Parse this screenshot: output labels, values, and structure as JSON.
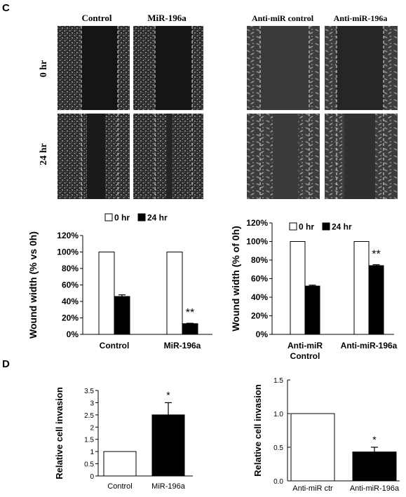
{
  "panels": {
    "c_label": "C",
    "d_label": "D"
  },
  "micro": {
    "left": {
      "col1": "Control",
      "col2": "MiR-196a"
    },
    "right": {
      "col1": "Anti-miR control",
      "col2": "Anti-miR-196a"
    },
    "rows": [
      "0 hr",
      "24 hr"
    ]
  },
  "chart_data": [
    {
      "type": "bar",
      "categories": [
        "Control",
        "MiR-196a"
      ],
      "series": [
        {
          "name": "0 hr",
          "values": [
            100,
            100
          ],
          "errors": [
            0,
            0
          ],
          "color": "#ffffff"
        },
        {
          "name": "24 hr",
          "values": [
            46,
            13
          ],
          "errors": [
            2,
            0.5
          ],
          "color": "#000000"
        }
      ],
      "ylabel": "Wound width (% vs 0h)",
      "ylim": [
        0,
        120
      ],
      "yticks": [
        "0%",
        "20%",
        "40%",
        "60%",
        "80%",
        "100%",
        "120%"
      ],
      "annotations": [
        {
          "category": "MiR-196a",
          "series": "24 hr",
          "text": "**"
        }
      ],
      "legend": "top"
    },
    {
      "type": "bar",
      "categories": [
        "Anti-miR Control",
        "Anti-miR-196a"
      ],
      "category_lines": [
        [
          "Anti-miR",
          "Control"
        ],
        [
          "Anti-miR-196a"
        ]
      ],
      "series": [
        {
          "name": "0 hr",
          "values": [
            100,
            100
          ],
          "errors": [
            0,
            0
          ],
          "color": "#ffffff"
        },
        {
          "name": "24 hr",
          "values": [
            52,
            74
          ],
          "errors": [
            1,
            1
          ],
          "color": "#000000"
        }
      ],
      "ylabel": "Wound width (% of 0h)",
      "ylim": [
        0,
        120
      ],
      "yticks": [
        "0%",
        "20%",
        "40%",
        "60%",
        "80%",
        "100%",
        "120%"
      ],
      "annotations": [
        {
          "category": "Anti-miR-196a",
          "series": "24 hr",
          "text": "**"
        }
      ],
      "legend": "top"
    },
    {
      "type": "bar",
      "categories": [
        "Control",
        "MiR-196a"
      ],
      "values": [
        1,
        2.5
      ],
      "errors": [
        0,
        0.5
      ],
      "colors": [
        "#ffffff",
        "#000000"
      ],
      "ylabel": "Relative cell invasion",
      "ylim": [
        0,
        3.5
      ],
      "yticks": [
        "0",
        "0.5",
        "1",
        "1.5",
        "2",
        "2.5",
        "3",
        "3.5"
      ],
      "annotations": [
        {
          "category": "MiR-196a",
          "text": "*"
        }
      ]
    },
    {
      "type": "bar",
      "categories": [
        "Anti-miR ctr",
        "Anti-miR-196a"
      ],
      "values": [
        1,
        0.43
      ],
      "errors": [
        0,
        0.07
      ],
      "colors": [
        "#ffffff",
        "#000000"
      ],
      "ylabel": "Relative cell invasion",
      "ylim": [
        0,
        1.5
      ],
      "yticks": [
        "0.0",
        "0.5",
        "1.0",
        "1.5"
      ],
      "annotations": [
        {
          "category": "Anti-miR-196a",
          "text": "*"
        }
      ]
    }
  ]
}
